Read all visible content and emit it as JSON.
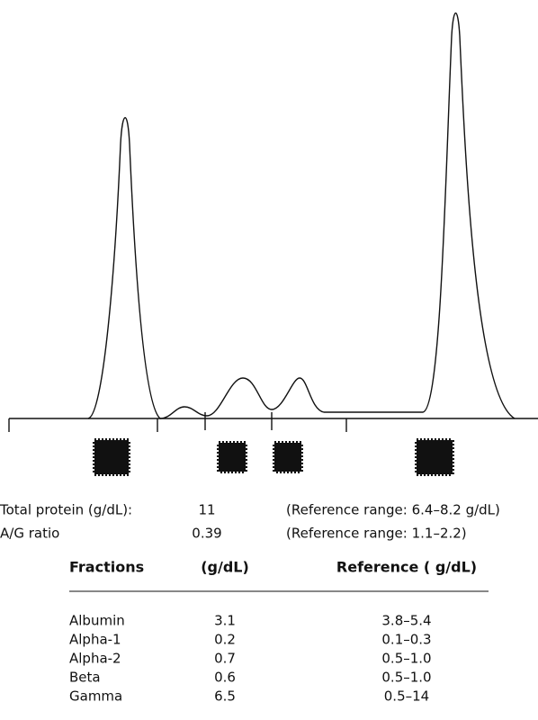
{
  "summary": [
    {
      "label": "Total protein (g/dL):",
      "value": "11",
      "reference": "(Reference range: 6.4–8.2 g/dL)"
    },
    {
      "label": "A/G ratio",
      "value": "0.39",
      "reference": "(Reference range: 1.1–2.2)"
    }
  ],
  "table": {
    "header": [
      "Fractions",
      "(g/dL)",
      "Reference ( g/dL)"
    ],
    "rows": [
      [
        "Albumin",
        "3.1",
        "3.8–5.4"
      ],
      [
        "Alpha-1",
        "0.2",
        "0.1–0.3"
      ],
      [
        "Alpha-2",
        "0.7",
        "0.5–1.0"
      ],
      [
        "Beta",
        "0.6",
        "0.5–1.0"
      ],
      [
        "Gamma",
        "6.5",
        "0.5–14"
      ]
    ]
  }
}
